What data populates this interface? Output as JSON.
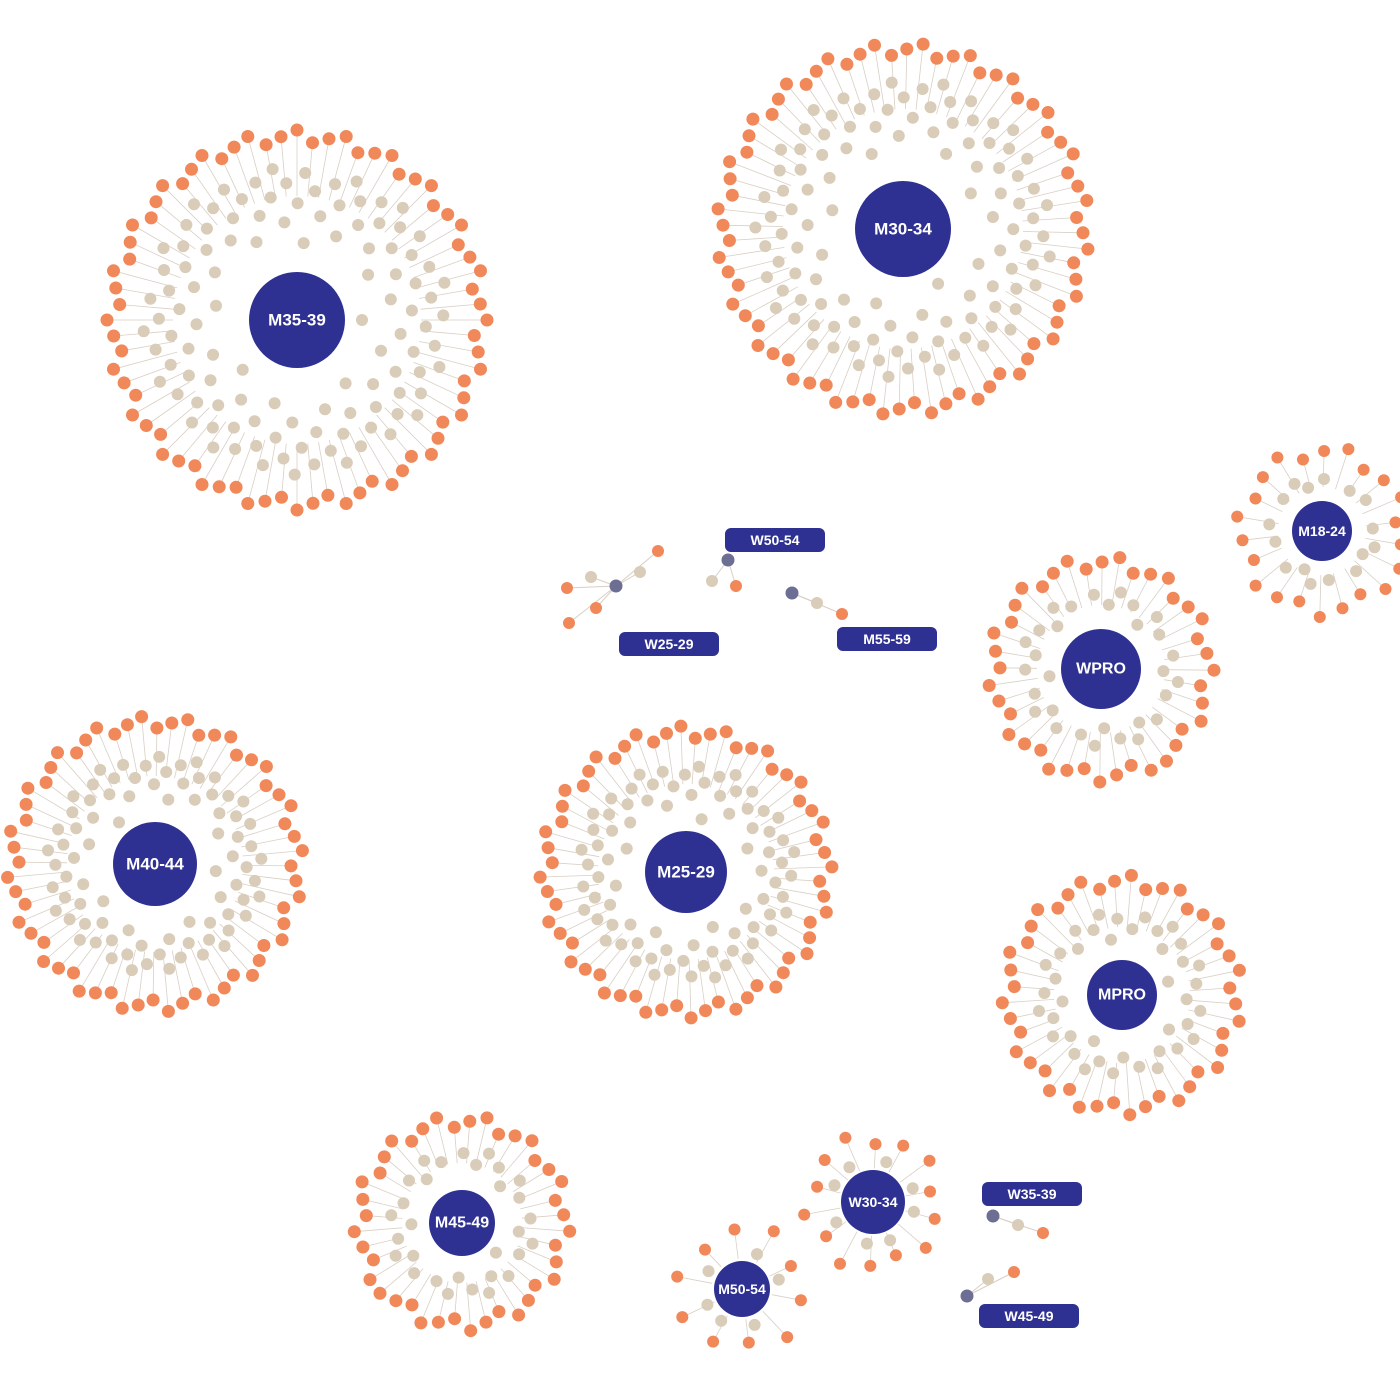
{
  "colors": {
    "hub": "#2e3192",
    "inner_node": "#d9ccb8",
    "outer_node": "#f0885a",
    "edge": "#d9cfc4",
    "small_hub": "#6d6e93"
  },
  "clusters": [
    {
      "id": "m35-39",
      "label": "M35-39",
      "outer_count": 72,
      "inner_count": 110
    },
    {
      "id": "m30-34",
      "label": "M30-34",
      "outer_count": 72,
      "inner_count": 110
    },
    {
      "id": "m18-24",
      "label": "M18-24",
      "outer_count": 22,
      "inner_count": 16
    },
    {
      "id": "wpro",
      "label": "WPRO",
      "outer_count": 40,
      "inner_count": 30
    },
    {
      "id": "m40-44",
      "label": "M40-44",
      "outer_count": 60,
      "inner_count": 80
    },
    {
      "id": "m25-29",
      "label": "M25-29",
      "outer_count": 60,
      "inner_count": 80
    },
    {
      "id": "mpro",
      "label": "MPRO",
      "outer_count": 44,
      "inner_count": 40
    },
    {
      "id": "m45-49",
      "label": "M45-49",
      "outer_count": 40,
      "inner_count": 30
    },
    {
      "id": "w30-34",
      "label": "W30-34",
      "outer_count": 14,
      "inner_count": 8
    },
    {
      "id": "m50-54",
      "label": "M50-54",
      "outer_count": 10,
      "inner_count": 6
    }
  ],
  "tags": [
    {
      "id": "w50-54",
      "label": "W50-54"
    },
    {
      "id": "w25-29",
      "label": "W25-29"
    },
    {
      "id": "m55-59",
      "label": "M55-59"
    },
    {
      "id": "w35-39",
      "label": "W35-39"
    },
    {
      "id": "w45-49",
      "label": "W45-49"
    }
  ]
}
